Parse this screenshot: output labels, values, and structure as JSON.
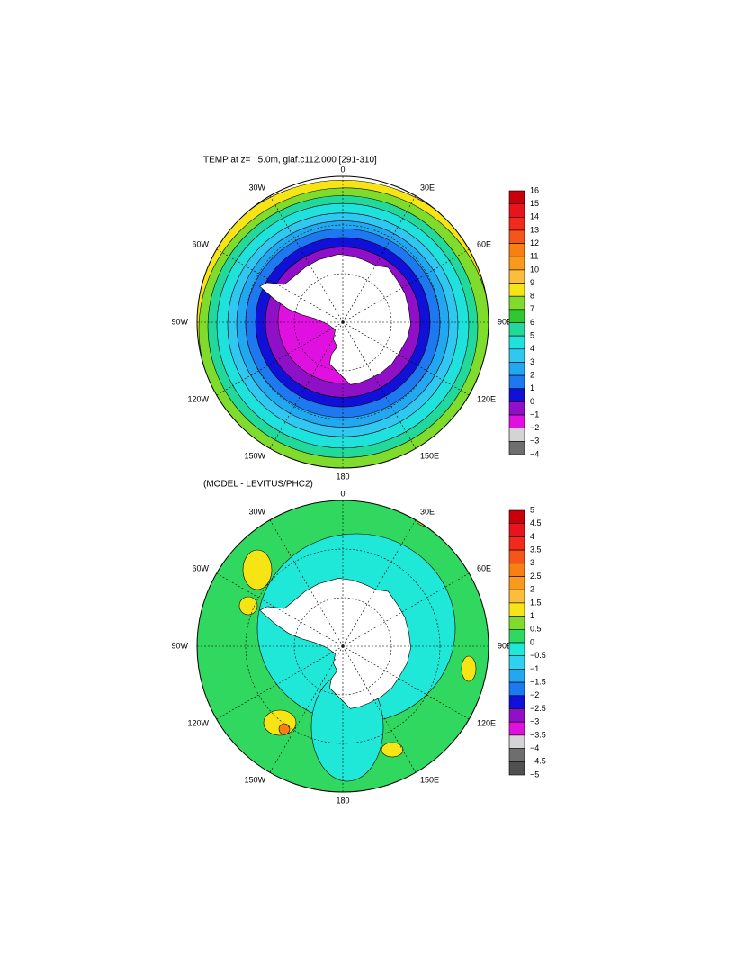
{
  "panels": [
    {
      "title": "TEMP at z=   5.0m, giaf.c112.000 [291-310]",
      "lon_labels": [
        "0",
        "30E",
        "60E",
        "90E",
        "120E",
        "150E",
        "180",
        "150W",
        "120W",
        "90W",
        "60W",
        "30W"
      ],
      "colorbar": {
        "labels": [
          "16",
          "15",
          "14",
          "13",
          "12",
          "11",
          "10",
          "9",
          "8",
          "7",
          "6",
          "5",
          "4",
          "3",
          "2",
          "1",
          "0",
          "−1",
          "−2",
          "−3",
          "−4"
        ],
        "colors": [
          "#c8000a",
          "#e8141c",
          "#f22a1e",
          "#f5541a",
          "#f77f14",
          "#f89a1c",
          "#fbbd3c",
          "#f6e415",
          "#7fdc2c",
          "#30c830",
          "#22d89a",
          "#20e2dc",
          "#30c8f0",
          "#22a8f0",
          "#1e78f0",
          "#1010d8",
          "#9010c8",
          "#e010e0",
          "#d4d4d4",
          "#6e6e6e"
        ]
      }
    },
    {
      "title": "(MODEL - LEVITUS/PHC2)",
      "lon_labels": [
        "0",
        "30E",
        "60E",
        "90E",
        "120E",
        "150E",
        "180",
        "150W",
        "120W",
        "90W",
        "60W",
        "30W"
      ],
      "colorbar": {
        "labels": [
          "5",
          "4.5",
          "4",
          "3.5",
          "3",
          "2.5",
          "2",
          "1.5",
          "1",
          "0.5",
          "0",
          "−0.5",
          "−1",
          "−1.5",
          "−2",
          "−2.5",
          "−3",
          "−3.5",
          "−4",
          "−4.5",
          "−5"
        ],
        "colors": [
          "#c8000a",
          "#e8141c",
          "#f22a1e",
          "#f5541a",
          "#f77f14",
          "#f89a1c",
          "#fbbd3c",
          "#f6e415",
          "#7fdc2c",
          "#30d860",
          "#20e8d8",
          "#30d0f0",
          "#22a8f0",
          "#1e78f0",
          "#1010d8",
          "#9010c8",
          "#e010e0",
          "#d4d4d4",
          "#6e6e6e",
          "#505050"
        ]
      }
    }
  ]
}
